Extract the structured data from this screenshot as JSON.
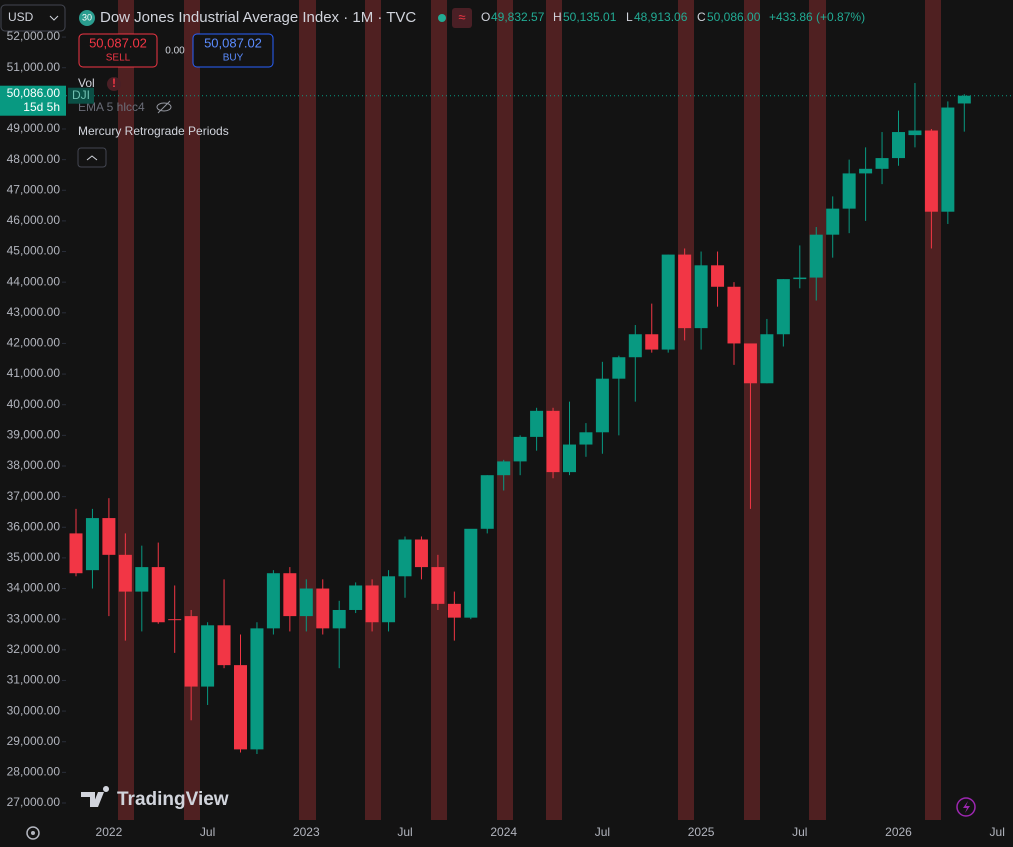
{
  "chart_data": {
    "type": "candlestick",
    "title": "Dow Jones Industrial Average Index · 1M · TVC",
    "symbol_badge": "30",
    "currency": "USD",
    "ohlc_legend": {
      "open_label": "O",
      "open": "49,832.57",
      "high_label": "H",
      "high": "50,135.01",
      "low_label": "L",
      "low": "48,913.06",
      "close_label": "C",
      "close": "50,086.00",
      "change": "+433.86 (+0.87%)"
    },
    "trade": {
      "sell_price": "50,087.02",
      "sell_label": "SELL",
      "spread": "0.00",
      "buy_price": "50,087.02",
      "buy_label": "BUY"
    },
    "indicators": [
      "Vol",
      "EMA 5 hlcc4",
      "Mercury Retrograde Periods"
    ],
    "symbol_tag": "DJI",
    "last_price": {
      "value": 50086,
      "label": "50,086.00",
      "countdown": "15d 5h"
    },
    "watermark": "TradingView",
    "categories": [
      null,
      null,
      "2022",
      null,
      null,
      null,
      null,
      null,
      "Jul",
      null,
      null,
      null,
      null,
      null,
      "2023",
      null,
      null,
      null,
      null,
      null,
      "Jul",
      null,
      null,
      null,
      null,
      null,
      "2024",
      null,
      null,
      null,
      null,
      null,
      "Jul",
      null,
      null,
      null,
      null,
      null,
      "2025",
      null,
      null,
      null,
      null,
      null,
      "Jul",
      null,
      null,
      null,
      null,
      null,
      "2026",
      null,
      null,
      null,
      null,
      null,
      "Jul"
    ],
    "open": [
      35800,
      34600,
      36300,
      35100,
      33900,
      34700,
      33000,
      33100,
      30800,
      32800,
      31500,
      28750,
      32700,
      34500,
      33100,
      34000,
      32700,
      33300,
      34100,
      32900,
      34400,
      35600,
      34700,
      33500,
      33050,
      35950,
      37700,
      38150,
      38950,
      39800,
      37800,
      38700,
      39100,
      40850,
      41550,
      42300,
      41800,
      44900,
      42500,
      44550,
      43850,
      42000,
      40700,
      42300,
      44100,
      44150,
      45550,
      46400,
      47550,
      47700,
      48050,
      48800,
      48950,
      46300,
      49832.57,
      null,
      null
    ],
    "high": [
      36600,
      36600,
      36950,
      35800,
      35400,
      35500,
      34100,
      33300,
      32900,
      34300,
      32500,
      32900,
      34600,
      34700,
      34300,
      34300,
      33600,
      34200,
      34300,
      34600,
      35700,
      35700,
      35100,
      33900,
      35900,
      37700,
      38200,
      39000,
      39900,
      39900,
      40100,
      39400,
      41400,
      41600,
      42600,
      43300,
      44900,
      45100,
      45000,
      45000,
      44000,
      42000,
      42800,
      44100,
      45200,
      45800,
      46800,
      48000,
      48400,
      48900,
      49600,
      50500,
      49000,
      49900,
      50135.01,
      null,
      null
    ],
    "low": [
      34400,
      34000,
      33100,
      32300,
      32600,
      32850,
      31900,
      29700,
      30200,
      31400,
      28650,
      28600,
      32500,
      32600,
      32600,
      32500,
      31400,
      33200,
      32600,
      32600,
      33700,
      34300,
      33300,
      32300,
      33000,
      35800,
      37200,
      37700,
      38500,
      37600,
      37700,
      38300,
      38400,
      39000,
      40100,
      41700,
      41700,
      42100,
      41800,
      43200,
      41300,
      36600,
      40700,
      41900,
      43800,
      43400,
      44800,
      45600,
      46000,
      47200,
      47800,
      48400,
      45100,
      45900,
      48913.06,
      null,
      null
    ],
    "close": [
      34500,
      36300,
      35100,
      33900,
      34700,
      32900,
      32990,
      30800,
      32800,
      31500,
      28750,
      32700,
      34500,
      33100,
      34000,
      32700,
      33300,
      34100,
      32900,
      34400,
      35600,
      34700,
      33500,
      33050,
      35950,
      37700,
      38150,
      38950,
      39800,
      37800,
      38700,
      39100,
      40850,
      41550,
      42300,
      41800,
      44900,
      42500,
      44550,
      43850,
      42000,
      40700,
      42300,
      44100,
      44150,
      45550,
      46400,
      47550,
      47700,
      48050,
      48900,
      48950,
      46300,
      49700,
      50086,
      null,
      null
    ],
    "up_color": "#089981",
    "down_color": "#f23645",
    "ylim": [
      26445,
      53210
    ],
    "yticks": [
      {
        "value": 27000,
        "label": "27,000.00"
      },
      {
        "value": 28000,
        "label": "28,000.00"
      },
      {
        "value": 29000,
        "label": "29,000.00"
      },
      {
        "value": 30000,
        "label": "30,000.00"
      },
      {
        "value": 31000,
        "label": "31,000.00"
      },
      {
        "value": 32000,
        "label": "32,000.00"
      },
      {
        "value": 33000,
        "label": "33,000.00"
      },
      {
        "value": 34000,
        "label": "34,000.00"
      },
      {
        "value": 35000,
        "label": "35,000.00"
      },
      {
        "value": 36000,
        "label": "36,000.00"
      },
      {
        "value": 37000,
        "label": "37,000.00"
      },
      {
        "value": 38000,
        "label": "38,000.00"
      },
      {
        "value": 39000,
        "label": "39,000.00"
      },
      {
        "value": 40000,
        "label": "40,000.00"
      },
      {
        "value": 41000,
        "label": "41,000.00"
      },
      {
        "value": 42000,
        "label": "42,000.00"
      },
      {
        "value": 43000,
        "label": "43,000.00"
      },
      {
        "value": 44000,
        "label": "44,000.00"
      },
      {
        "value": 45000,
        "label": "45,000.00"
      },
      {
        "value": 46000,
        "label": "46,000.00"
      },
      {
        "value": 47000,
        "label": "47,000.00"
      },
      {
        "value": 48000,
        "label": "48,000.00"
      },
      {
        "value": 49000,
        "label": "49,000.00"
      },
      {
        "value": 50000,
        "label": "50,000.00"
      },
      {
        "value": 51000,
        "label": "51,000.00"
      },
      {
        "value": 52000,
        "label": "52,000.00"
      }
    ],
    "grid": false
  }
}
